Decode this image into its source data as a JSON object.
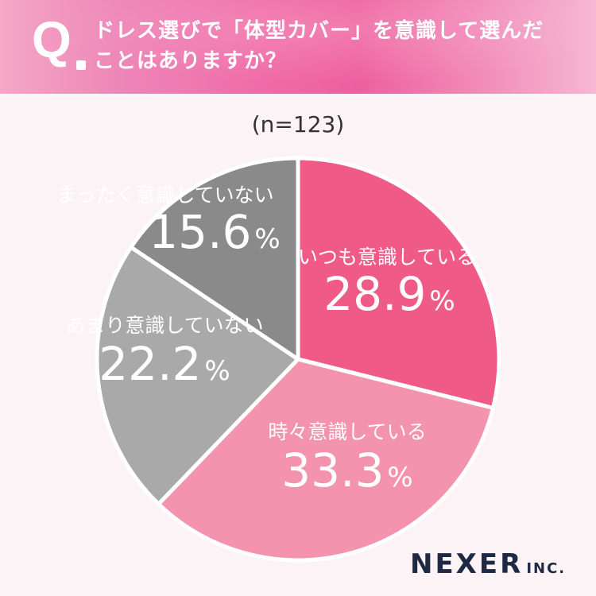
{
  "header": {
    "q_mark": "Q",
    "question_line1": "ドレス選びで「体型カバー」を意識して選んだ",
    "question_line2": "ことはありますか？"
  },
  "sample_size": "(n=123)",
  "logo": {
    "main": "NEXER",
    "suffix": "INC."
  },
  "chart_data": {
    "type": "pie",
    "title": "ドレス選びで「体型カバー」を意識して選んだことはありますか？",
    "n": "(n=123)",
    "slices": [
      {
        "label": "いつも意識している",
        "value": 28.9,
        "display": "28.9",
        "color": "#ef5a87",
        "text_color": "#ffffff"
      },
      {
        "label": "時々意識している",
        "value": 33.3,
        "display": "33.3",
        "color": "#f393ad",
        "text_color": "#ffffff"
      },
      {
        "label": "あまり意識していない",
        "value": 22.2,
        "display": "22.2",
        "color": "#a9a9a9",
        "text_color": "#ffffff"
      },
      {
        "label": "まったく意識していない",
        "value": 15.6,
        "display": "15.6",
        "color": "#8a8a8a",
        "text_color": "#ffffff"
      }
    ],
    "unit": "%",
    "start": "12 o'clock",
    "direction": "clockwise"
  }
}
